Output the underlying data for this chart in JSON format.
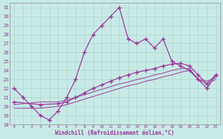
{
  "xlabel": "Windchill (Refroidissement éolien,°C)",
  "xlim": [
    -0.5,
    23.5
  ],
  "ylim": [
    18,
    31.5
  ],
  "xticks": [
    0,
    1,
    2,
    3,
    4,
    5,
    6,
    7,
    8,
    9,
    10,
    11,
    12,
    13,
    14,
    15,
    16,
    17,
    18,
    19,
    20,
    21,
    22,
    23
  ],
  "yticks": [
    18,
    19,
    20,
    21,
    22,
    23,
    24,
    25,
    26,
    27,
    28,
    29,
    30,
    31
  ],
  "bg_color": "#c8eae6",
  "line_color": "#993399",
  "grid_color": "#b0d8d4",
  "line1_x": [
    0,
    1,
    2,
    3,
    4,
    5,
    6,
    7,
    8,
    9,
    10,
    11,
    12,
    13,
    14,
    15,
    16,
    17,
    18,
    19,
    20,
    21,
    22,
    23
  ],
  "line1_y": [
    22,
    21,
    20,
    19,
    18.5,
    19.5,
    21,
    23,
    26,
    28,
    29,
    30,
    31,
    27.5,
    27,
    27.5,
    26.5,
    27.5,
    25,
    24.5,
    24,
    23,
    22,
    23.5
  ],
  "line2_x": [
    0,
    3,
    5,
    6,
    7,
    8,
    9,
    10,
    11,
    12,
    13,
    14,
    15,
    16,
    17,
    18,
    19,
    20,
    21,
    22,
    23
  ],
  "line2_y": [
    20.5,
    20.2,
    20.3,
    20.5,
    21,
    21.5,
    22,
    22.4,
    22.8,
    23.2,
    23.5,
    23.8,
    24.0,
    24.2,
    24.5,
    24.7,
    24.8,
    24.5,
    23.5,
    22.5,
    23.5
  ],
  "line3_x": [
    0,
    1,
    2,
    3,
    4,
    5,
    6,
    7,
    8,
    9,
    10,
    11,
    12,
    13,
    14,
    15,
    16,
    17,
    18,
    19,
    20,
    21,
    22,
    23
  ],
  "line3_y": [
    20.2,
    20.3,
    20.4,
    20.5,
    20.5,
    20.5,
    20.7,
    21.0,
    21.3,
    21.6,
    21.9,
    22.2,
    22.5,
    22.7,
    23.0,
    23.2,
    23.5,
    23.7,
    24.0,
    24.2,
    24.2,
    23.0,
    22.8,
    23.2
  ],
  "line4_x": [
    0,
    1,
    2,
    3,
    4,
    5,
    6,
    7,
    8,
    9,
    10,
    11,
    12,
    13,
    14,
    15,
    16,
    17,
    18,
    19,
    20,
    21,
    22,
    23
  ],
  "line4_y": [
    19.8,
    19.8,
    19.8,
    19.8,
    19.9,
    20.0,
    20.2,
    20.5,
    20.8,
    21.1,
    21.4,
    21.7,
    22.0,
    22.3,
    22.5,
    22.8,
    23.0,
    23.3,
    23.5,
    23.8,
    24.0,
    23.0,
    22.5,
    23.0
  ],
  "marker": "+",
  "markersize": 4
}
